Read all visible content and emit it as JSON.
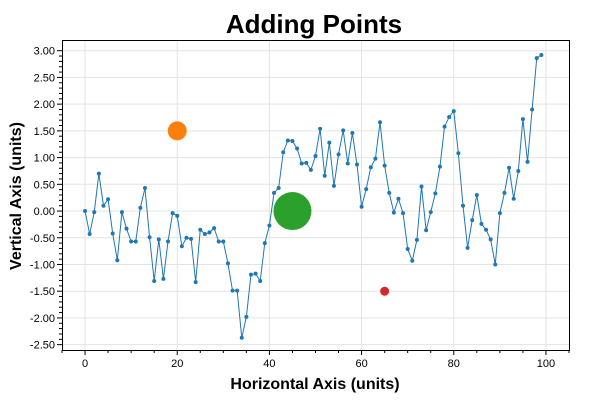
{
  "chart_data": {
    "type": "scatter",
    "title": "Adding Points",
    "xlabel": "Horizontal Axis (units)",
    "ylabel": "Vertical Axis (units)",
    "xlim": [
      -5,
      105
    ],
    "ylim": [
      -2.6,
      3.2
    ],
    "xticks": [
      0,
      20,
      40,
      60,
      80,
      100
    ],
    "xtick_labels": [
      "0",
      "20",
      "40",
      "60",
      "80",
      "100"
    ],
    "yticks": [
      -2.5,
      -2.0,
      -1.5,
      -1.0,
      -0.5,
      0.0,
      0.5,
      1.0,
      1.5,
      2.0,
      2.5,
      3.0
    ],
    "ytick_labels": [
      "-2.50",
      "-2.00",
      "-1.50",
      "-1.00",
      "-0.50",
      "0.00",
      "0.50",
      "1.00",
      "1.50",
      "2.00",
      "2.50",
      "3.00"
    ],
    "grid": true,
    "series": [
      {
        "color": "#1f77b4",
        "style": "line-with-markers",
        "x": [
          0,
          1,
          2,
          3,
          4,
          5,
          6,
          7,
          8,
          9,
          10,
          11,
          12,
          13,
          14,
          15,
          16,
          17,
          18,
          19,
          20,
          21,
          22,
          23,
          24,
          25,
          26,
          27,
          28,
          29,
          30,
          31,
          32,
          33,
          34,
          35,
          36,
          37,
          38,
          39,
          40,
          41,
          42,
          43,
          44,
          45,
          46,
          47,
          48,
          49,
          50,
          51,
          52,
          53,
          54,
          55,
          56,
          57,
          58,
          59,
          60,
          61,
          62,
          63,
          64,
          65,
          66,
          67,
          68,
          69,
          70,
          71,
          72,
          73,
          74,
          75,
          76,
          77,
          78,
          79,
          80,
          81,
          82,
          83,
          84,
          85,
          86,
          87,
          88,
          89,
          90,
          91,
          92,
          93,
          94,
          95,
          96,
          97,
          98,
          99
        ],
        "y": [
          0.0,
          -0.43,
          -0.02,
          0.7,
          0.1,
          0.22,
          -0.42,
          -0.92,
          -0.02,
          -0.33,
          -0.57,
          -0.57,
          0.06,
          0.43,
          -0.49,
          -1.31,
          -0.53,
          -1.27,
          -0.57,
          -0.04,
          -0.09,
          -0.66,
          -0.5,
          -0.52,
          -1.33,
          -0.35,
          -0.43,
          -0.4,
          -0.32,
          -0.57,
          -0.57,
          -0.98,
          -1.49,
          -1.49,
          -2.37,
          -1.98,
          -1.19,
          -1.17,
          -1.31,
          -0.6,
          -0.27,
          0.34,
          0.43,
          1.1,
          1.32,
          1.31,
          1.17,
          0.89,
          0.9,
          0.77,
          1.03,
          1.54,
          0.66,
          1.28,
          0.47,
          1.06,
          1.51,
          0.89,
          1.46,
          0.87,
          0.08,
          0.41,
          0.82,
          0.98,
          1.66,
          0.85,
          0.34,
          -0.03,
          0.23,
          -0.04,
          -0.71,
          -0.93,
          -0.54,
          0.46,
          -0.36,
          -0.02,
          0.33,
          0.83,
          1.58,
          1.76,
          1.87,
          1.08,
          0.1,
          -0.69,
          -0.17,
          0.3,
          -0.24,
          -0.35,
          -0.53,
          -1.0,
          -0.04,
          0.34,
          0.81,
          0.23,
          0.75,
          1.72,
          0.92,
          1.9,
          2.86,
          2.92
        ]
      },
      {
        "color": "#ff7f0e",
        "style": "point",
        "size": "medium",
        "x": [
          20
        ],
        "y": [
          1.5
        ]
      },
      {
        "color": "#2ca02c",
        "style": "point",
        "size": "large",
        "x": [
          45
        ],
        "y": [
          0.0
        ]
      },
      {
        "color": "#d62728",
        "style": "point",
        "size": "small",
        "x": [
          65
        ],
        "y": [
          -1.5
        ]
      }
    ]
  }
}
